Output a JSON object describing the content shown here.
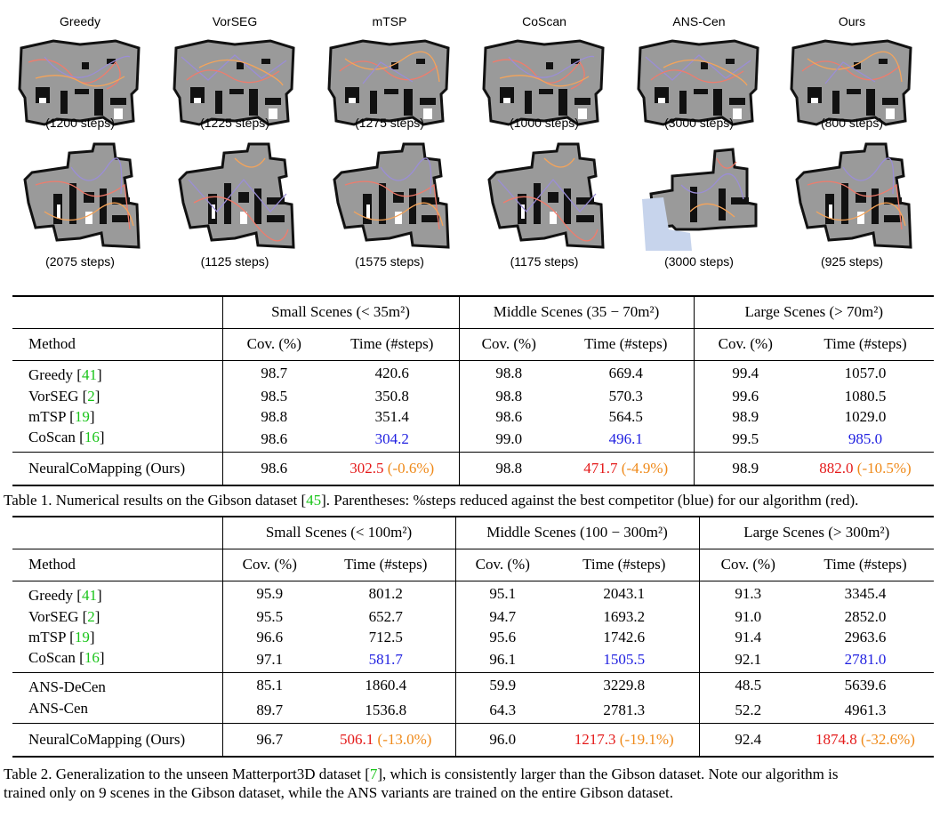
{
  "figure": {
    "methods": [
      "Greedy",
      "VorSEG",
      "mTSP",
      "CoScan",
      "ANS-Cen",
      "Ours"
    ],
    "row1_steps": [
      "(1200 steps)",
      "(1225 steps)",
      "(1275 steps)",
      "(1000 steps)",
      "(3000 steps)",
      "(800 steps)"
    ],
    "row2_steps": [
      "(2075 steps)",
      "(1125 steps)",
      "(1575 steps)",
      "(1175 steps)",
      "(3000 steps)",
      "(925 steps)"
    ]
  },
  "table1": {
    "groups": [
      "Small Scenes (< 35m²)",
      "Middle Scenes (35 − 70m²)",
      "Large Scenes (> 70m²)"
    ],
    "method_header": "Method",
    "col_headers": [
      "Cov. (%)",
      "Time (#steps)"
    ],
    "rows": [
      {
        "name": "Greedy",
        "ref": "41",
        "vals": [
          "98.7",
          "420.6",
          "98.8",
          "669.4",
          "99.4",
          "1057.0"
        ]
      },
      {
        "name": "VorSEG",
        "ref": "2",
        "vals": [
          "98.5",
          "350.8",
          "98.8",
          "570.3",
          "99.6",
          "1080.5"
        ]
      },
      {
        "name": "mTSP",
        "ref": "19",
        "vals": [
          "98.8",
          "351.4",
          "98.6",
          "564.5",
          "98.9",
          "1029.0"
        ]
      },
      {
        "name": "CoScan",
        "ref": "16",
        "vals": [
          "98.6",
          "304.2",
          "99.0",
          "496.1",
          "99.5",
          "985.0"
        ]
      }
    ],
    "ours": {
      "name": "NeuralCoMapping (Ours)",
      "vals": [
        "98.6",
        "302.5",
        "(-0.6%)",
        "98.8",
        "471.7",
        "(-4.9%)",
        "98.9",
        "882.0",
        "(-10.5%)"
      ]
    },
    "caption_a": "Table 1. Numerical results on the Gibson dataset [",
    "caption_ref": "45",
    "caption_b": "]. Parentheses: %steps reduced against the best competitor (blue) for our algorithm (red)."
  },
  "table2": {
    "groups": [
      "Small Scenes (< 100m²)",
      "Middle Scenes (100 − 300m²)",
      "Large Scenes (> 300m²)"
    ],
    "method_header": "Method",
    "col_headers": [
      "Cov. (%)",
      "Time (#steps)"
    ],
    "rows": [
      {
        "name": "Greedy",
        "ref": "41",
        "vals": [
          "95.9",
          "801.2",
          "95.1",
          "2043.1",
          "91.3",
          "3345.4"
        ]
      },
      {
        "name": "VorSEG",
        "ref": "2",
        "vals": [
          "95.5",
          "652.7",
          "94.7",
          "1693.2",
          "91.0",
          "2852.0"
        ]
      },
      {
        "name": "mTSP",
        "ref": "19",
        "vals": [
          "96.6",
          "712.5",
          "95.6",
          "1742.6",
          "91.4",
          "2963.6"
        ]
      },
      {
        "name": "CoScan",
        "ref": "16",
        "vals": [
          "97.1",
          "581.7",
          "96.1",
          "1505.5",
          "92.1",
          "2781.0"
        ]
      }
    ],
    "ans_rows": [
      {
        "name": "ANS-DeCen",
        "vals": [
          "85.1",
          "1860.4",
          "59.9",
          "3229.8",
          "48.5",
          "5639.6"
        ]
      },
      {
        "name": "ANS-Cen",
        "vals": [
          "89.7",
          "1536.8",
          "64.3",
          "2781.3",
          "52.2",
          "4961.3"
        ]
      }
    ],
    "ours": {
      "name": "NeuralCoMapping (Ours)",
      "vals": [
        "96.7",
        "506.1",
        "(-13.0%)",
        "96.0",
        "1217.3",
        "(-19.1%)",
        "92.4",
        "1874.8",
        "(-32.6%)"
      ]
    },
    "caption_a": "Table 2. Generalization to the unseen Matterport3D dataset [",
    "caption_ref": "7",
    "caption_b": "], which is consistently larger than the Gibson dataset. Note our algorithm is",
    "caption_line2": "trained only on 9 scenes in the Gibson dataset, while the ANS variants are trained on the entire Gibson dataset."
  },
  "colors": {
    "ref_green": "#19c419",
    "best_blue": "#1f1fe0",
    "ours_red": "#e41a1a",
    "reduction_orange": "#ef8a1a"
  }
}
